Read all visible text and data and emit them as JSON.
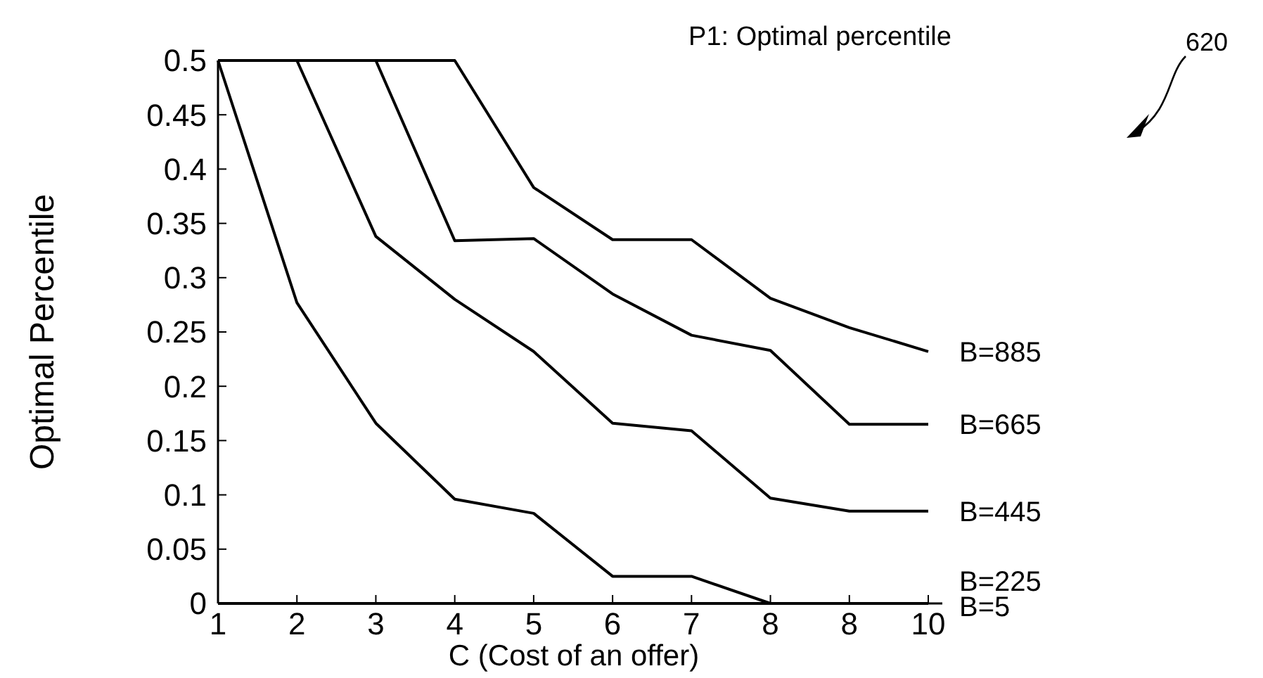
{
  "chart_data": {
    "type": "line",
    "title": "P1: Optimal percentile",
    "xlabel": "C (Cost of an offer)",
    "ylabel": "Optimal Percentile",
    "categories": [
      "1",
      "2",
      "3",
      "4",
      "5",
      "6",
      "7",
      "8",
      "8",
      "10"
    ],
    "ylim": [
      0,
      0.5
    ],
    "yticks": [
      0,
      0.05,
      0.1,
      0.15,
      0.2,
      0.25,
      0.3,
      0.35,
      0.4,
      0.45,
      0.5
    ],
    "series": [
      {
        "name": "B=885",
        "color": "#000000",
        "values": [
          0.5,
          0.5,
          0.5,
          0.5,
          0.383,
          0.335,
          0.335,
          0.281,
          0.254,
          0.232
        ]
      },
      {
        "name": "B=665",
        "color": "#000000",
        "values": [
          0.5,
          0.5,
          0.5,
          0.334,
          0.336,
          0.285,
          0.247,
          0.233,
          0.165,
          0.165
        ]
      },
      {
        "name": "B=445",
        "color": "#000000",
        "values": [
          0.5,
          0.5,
          0.338,
          0.28,
          0.232,
          0.166,
          0.159,
          0.097,
          0.085,
          0.085
        ]
      },
      {
        "name": "B=225",
        "color": "#000000",
        "values": [
          0.5,
          0.277,
          0.166,
          0.096,
          0.083,
          0.025,
          0.025,
          0,
          0,
          0
        ]
      },
      {
        "name": "B=5",
        "color": "#000000",
        "values": [
          0,
          0,
          0,
          0,
          0,
          0,
          0,
          0,
          0,
          0
        ]
      }
    ],
    "annotations": [
      "620"
    ],
    "grid": false,
    "marker": "none",
    "line_style": "solid"
  }
}
